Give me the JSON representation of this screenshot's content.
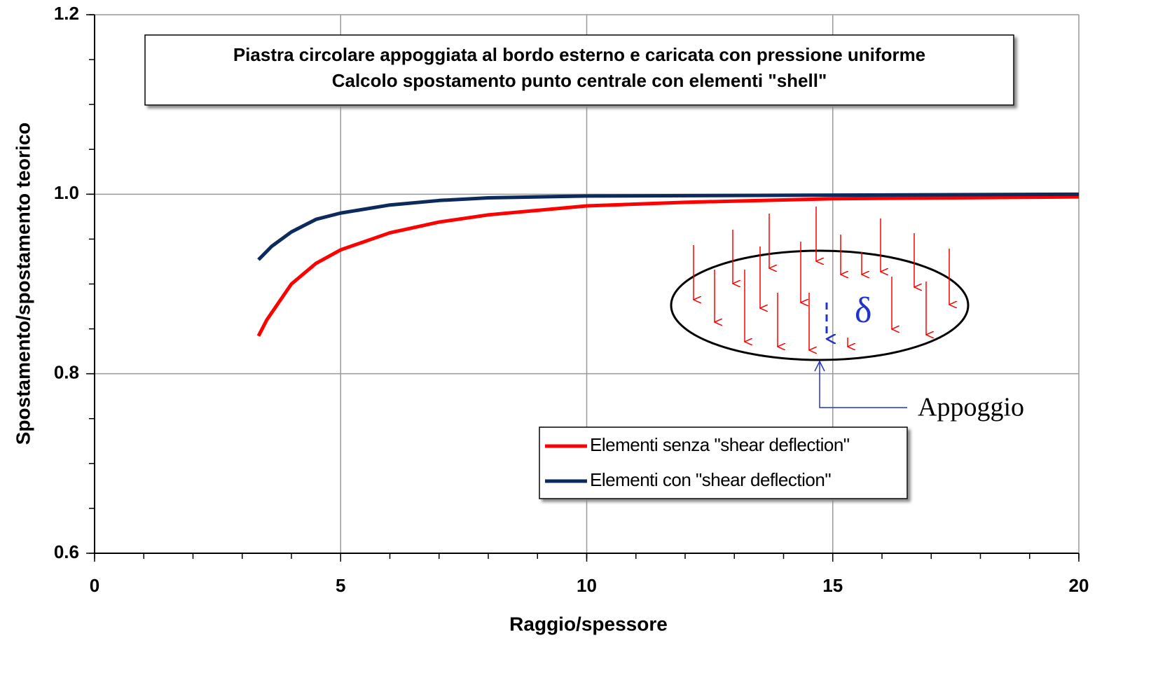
{
  "chart_data": {
    "type": "line",
    "title": [
      "Piastra circolare appoggiata al bordo esterno e caricata con pressione uniforme",
      "Calcolo spostamento punto centrale con elementi \"shell\""
    ],
    "x_label": "Raggio/spessore",
    "y_label": "Spostamento/spostamento teorico",
    "xlim": [
      0,
      20
    ],
    "xticks": [
      0,
      5,
      10,
      15,
      20
    ],
    "ylim": [
      0.6,
      1.2
    ],
    "yticks": [
      {
        "value": 0.6,
        "label": "0.6"
      },
      {
        "value": 0.8,
        "label": "0.8"
      },
      {
        "value": 1,
        "label": "1.0"
      },
      {
        "value": 1.2,
        "label": "1.2"
      }
    ],
    "grid": true,
    "legend": "lower right",
    "annotations": [
      "δ",
      "Appoggio"
    ],
    "series": [
      {
        "name": "Elementi senza \"shear deflection\"",
        "color": "#ff0000",
        "x": [
          3.33,
          3.5,
          4,
          4.5,
          5,
          6,
          7,
          8,
          10,
          12,
          15,
          20
        ],
        "values": [
          0.842,
          0.86,
          0.9,
          0.923,
          0.938,
          0.957,
          0.969,
          0.977,
          0.987,
          0.991,
          0.995,
          0.997
        ]
      },
      {
        "name": "Elementi con \"shear deflection\"",
        "color": "#0d2a5c",
        "x": [
          3.33,
          3.6,
          4,
          4.5,
          5,
          6,
          7,
          8,
          10,
          15,
          20
        ],
        "values": [
          0.927,
          0.942,
          0.958,
          0.972,
          0.979,
          0.988,
          0.993,
          0.996,
          0.998,
          0.999,
          1.0
        ]
      }
    ]
  }
}
